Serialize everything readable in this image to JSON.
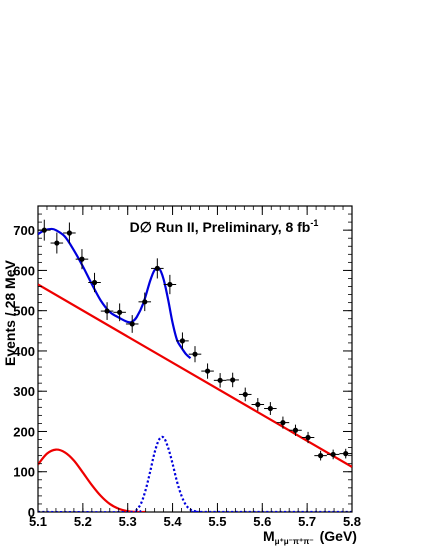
{
  "chart_data": {
    "type": "scatter",
    "annotation": {
      "main": "D∅ Run II, Preliminary,  8 fb",
      "sup": "-1"
    },
    "ylabel": "Events / 28 MeV",
    "xlabel": {
      "base": "M",
      "sub": "μ⁺μ⁻π⁺π⁻",
      "unit": "(GeV)"
    },
    "xlim": [
      5.1,
      5.8
    ],
    "ylim": [
      0,
      760
    ],
    "x_ticks": [
      5.1,
      5.2,
      5.3,
      5.4,
      5.5,
      5.6,
      5.7,
      5.8
    ],
    "x_tick_labels": [
      "5.1",
      "5.2",
      "5.3",
      "5.4",
      "5.5",
      "5.6",
      "5.7",
      "5.8"
    ],
    "y_ticks": [
      0,
      100,
      200,
      300,
      400,
      500,
      600,
      700
    ],
    "y_tick_labels": [
      "0",
      "100",
      "200",
      "300",
      "400",
      "500",
      "600",
      "700"
    ],
    "grid": false,
    "series": [
      {
        "kind": "data_points_with_errors",
        "color": "#000000",
        "x": [
          5.114,
          5.142,
          5.17,
          5.198,
          5.226,
          5.254,
          5.282,
          5.31,
          5.338,
          5.366,
          5.394,
          5.422,
          5.45,
          5.478,
          5.506,
          5.534,
          5.562,
          5.59,
          5.618,
          5.646,
          5.674,
          5.702,
          5.73,
          5.758,
          5.786
        ],
        "y": [
          700,
          668,
          693,
          628,
          570,
          499,
          496,
          467,
          522,
          605,
          565,
          425,
          392,
          350,
          327,
          328,
          292,
          267,
          257,
          222,
          203,
          185,
          140,
          143,
          145
        ],
        "err": [
          26,
          26,
          26,
          25,
          24,
          22,
          22,
          22,
          23,
          25,
          24,
          21,
          20,
          19,
          18,
          18,
          17,
          16,
          16,
          15,
          14,
          14,
          12,
          12,
          12
        ]
      },
      {
        "kind": "total_fit",
        "color": "#0000dd",
        "style": "solid",
        "x": [
          5.1,
          5.115,
          5.13,
          5.14,
          5.16,
          5.18,
          5.2,
          5.22,
          5.24,
          5.26,
          5.28,
          5.3,
          5.31,
          5.32,
          5.335,
          5.35,
          5.36,
          5.37,
          5.38,
          5.39,
          5.4,
          5.41,
          5.42,
          5.43,
          5.44
        ],
        "y": [
          690,
          700,
          703,
          700,
          684,
          650,
          610,
          566,
          525,
          497,
          483,
          472,
          473,
          484,
          519,
          574,
          601,
          605,
          578,
          528,
          470,
          427,
          408,
          392,
          382
        ]
      },
      {
        "kind": "background_linear",
        "color": "#ee0000",
        "style": "solid",
        "x": [
          5.1,
          5.8
        ],
        "y": [
          565,
          112
        ]
      },
      {
        "kind": "background_low_mass",
        "color": "#ee0000",
        "style": "solid",
        "x": [
          5.1,
          5.12,
          5.14,
          5.16,
          5.18,
          5.2,
          5.22,
          5.24,
          5.26,
          5.28,
          5.3,
          5.32,
          5.34
        ],
        "y": [
          118,
          145,
          155,
          148,
          128,
          98,
          67,
          40,
          20,
          8,
          2,
          0,
          0
        ]
      },
      {
        "kind": "signal",
        "color": "#0000dd",
        "style": "dotted",
        "x": [
          5.1,
          5.31,
          5.32,
          5.33,
          5.34,
          5.35,
          5.36,
          5.37,
          5.38,
          5.39,
          5.4,
          5.41,
          5.42,
          5.43,
          5.44,
          5.45,
          5.46,
          5.47,
          5.8
        ],
        "y": [
          0,
          0,
          6,
          22,
          55,
          100,
          148,
          180,
          185,
          160,
          120,
          75,
          40,
          17,
          6,
          2,
          0,
          0,
          0
        ]
      }
    ]
  }
}
